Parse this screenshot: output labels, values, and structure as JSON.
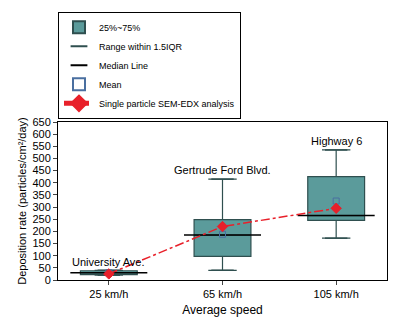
{
  "chart_data": {
    "type": "box",
    "x_label": "Average speed",
    "y_label": "Deposition rate (particles/cm²/day)",
    "categories": [
      "25 km/h",
      "65 km/h",
      "105 km/h"
    ],
    "box": {
      "name": "25%~75%",
      "color": "#5b9b9b",
      "q1": [
        22,
        97,
        245
      ],
      "median": [
        30,
        185,
        265
      ],
      "q3": [
        38,
        248,
        425
      ],
      "lowerfence": [
        20,
        40,
        172
      ],
      "upperfence": [
        40,
        415,
        535
      ],
      "whisker_name": "Range within 1.5IQR",
      "median_name": "Median Line"
    },
    "series": [
      {
        "name": "Mean",
        "type": "scatter",
        "marker": "square-open",
        "color": "#4a6fa0",
        "values": [
          30,
          188,
          325
        ]
      },
      {
        "name": "Single particle SEM-EDX analysis",
        "type": "line",
        "marker": "diamond",
        "line_style": "dashdot",
        "color": "#e8202a",
        "values": [
          25,
          220,
          295
        ]
      }
    ],
    "annotations": [
      {
        "text": "University Ave.",
        "x": "25 km/h",
        "y": 42
      },
      {
        "text": "Gertrude Ford Blvd.",
        "x": "65 km/h",
        "y": 420
      },
      {
        "text": "Highway 6",
        "x": "105 km/h",
        "y": 540
      }
    ],
    "ylim": [
      0,
      650
    ],
    "yticks": [
      0,
      50,
      100,
      150,
      200,
      250,
      300,
      350,
      400,
      450,
      500,
      550,
      600,
      650
    ],
    "grid": false,
    "legend": "top"
  }
}
